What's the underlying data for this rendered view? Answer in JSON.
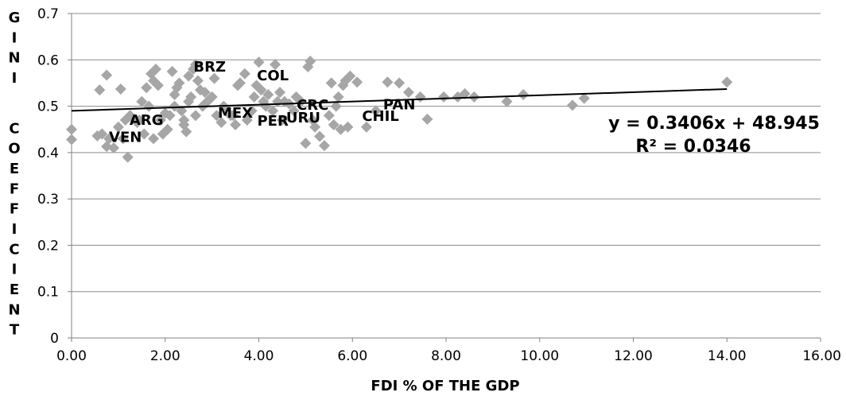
{
  "chart_data": {
    "type": "scatter",
    "title": "",
    "xlabel": "FDI % OF THE GDP",
    "ylabel": "GINI COEFFICIENT",
    "xlim": [
      0,
      16
    ],
    "ylim": [
      0,
      0.7
    ],
    "x_ticks": [
      "0.00",
      "2.00",
      "4.00",
      "6.00",
      "8.00",
      "10.00",
      "12.00",
      "14.00",
      "16.00"
    ],
    "y_ticks": [
      "0",
      "0.1",
      "0.2",
      "0.3",
      "0.4",
      "0.5",
      "0.6",
      "0.7"
    ],
    "grid": "horizontal",
    "marker_color": "#a6a6a6",
    "trendline_color": "#000000",
    "trendline": {
      "equation": "y = 0.3406x + 48.945",
      "r_squared": "R² = 0.0346",
      "x": [
        0,
        14
      ],
      "y": [
        0.49,
        0.537
      ]
    },
    "country_labels": [
      {
        "text": "BRZ",
        "x": 2.95,
        "y": 0.575
      },
      {
        "text": "COL",
        "x": 4.3,
        "y": 0.556
      },
      {
        "text": "CRC",
        "x": 5.15,
        "y": 0.492
      },
      {
        "text": "PAN",
        "x": 7.0,
        "y": 0.493
      },
      {
        "text": "MEX",
        "x": 3.5,
        "y": 0.475
      },
      {
        "text": "PER",
        "x": 4.3,
        "y": 0.458
      },
      {
        "text": "URU",
        "x": 4.95,
        "y": 0.465
      },
      {
        "text": "CHIL",
        "x": 6.6,
        "y": 0.468
      },
      {
        "text": "ARG",
        "x": 1.6,
        "y": 0.46
      },
      {
        "text": "VEN",
        "x": 1.15,
        "y": 0.423
      }
    ],
    "points": [
      [
        0.0,
        0.45
      ],
      [
        0.0,
        0.428
      ],
      [
        0.55,
        0.436
      ],
      [
        0.6,
        0.535
      ],
      [
        0.65,
        0.44
      ],
      [
        0.75,
        0.567
      ],
      [
        0.75,
        0.413
      ],
      [
        0.8,
        0.43
      ],
      [
        0.9,
        0.41
      ],
      [
        1.0,
        0.455
      ],
      [
        1.05,
        0.537
      ],
      [
        1.1,
        0.43
      ],
      [
        1.15,
        0.47
      ],
      [
        1.2,
        0.39
      ],
      [
        1.25,
        0.48
      ],
      [
        1.35,
        0.47
      ],
      [
        1.4,
        0.465
      ],
      [
        1.45,
        0.47
      ],
      [
        1.5,
        0.51
      ],
      [
        1.55,
        0.44
      ],
      [
        1.6,
        0.54
      ],
      [
        1.65,
        0.5
      ],
      [
        1.7,
        0.57
      ],
      [
        1.75,
        0.555
      ],
      [
        1.75,
        0.43
      ],
      [
        1.8,
        0.58
      ],
      [
        1.85,
        0.545
      ],
      [
        1.9,
        0.47
      ],
      [
        1.95,
        0.44
      ],
      [
        2.0,
        0.485
      ],
      [
        2.05,
        0.45
      ],
      [
        2.1,
        0.48
      ],
      [
        2.15,
        0.575
      ],
      [
        2.2,
        0.525
      ],
      [
        2.2,
        0.5
      ],
      [
        2.25,
        0.54
      ],
      [
        2.3,
        0.55
      ],
      [
        2.35,
        0.49
      ],
      [
        2.4,
        0.47
      ],
      [
        2.4,
        0.46
      ],
      [
        2.45,
        0.445
      ],
      [
        2.5,
        0.565
      ],
      [
        2.5,
        0.51
      ],
      [
        2.55,
        0.52
      ],
      [
        2.6,
        0.58
      ],
      [
        2.65,
        0.59
      ],
      [
        2.65,
        0.48
      ],
      [
        2.7,
        0.555
      ],
      [
        2.75,
        0.535
      ],
      [
        2.8,
        0.5
      ],
      [
        2.85,
        0.53
      ],
      [
        2.9,
        0.51
      ],
      [
        3.0,
        0.52
      ],
      [
        3.05,
        0.56
      ],
      [
        3.1,
        0.48
      ],
      [
        3.2,
        0.465
      ],
      [
        3.25,
        0.5
      ],
      [
        3.3,
        0.495
      ],
      [
        3.4,
        0.48
      ],
      [
        3.45,
        0.48
      ],
      [
        3.5,
        0.46
      ],
      [
        3.55,
        0.545
      ],
      [
        3.6,
        0.55
      ],
      [
        3.7,
        0.57
      ],
      [
        3.75,
        0.47
      ],
      [
        3.85,
        0.49
      ],
      [
        3.9,
        0.52
      ],
      [
        3.95,
        0.545
      ],
      [
        4.0,
        0.595
      ],
      [
        4.05,
        0.535
      ],
      [
        4.1,
        0.51
      ],
      [
        4.15,
        0.5
      ],
      [
        4.2,
        0.525
      ],
      [
        4.3,
        0.49
      ],
      [
        4.35,
        0.59
      ],
      [
        4.4,
        0.51
      ],
      [
        4.45,
        0.53
      ],
      [
        4.5,
        0.47
      ],
      [
        4.55,
        0.51
      ],
      [
        4.65,
        0.505
      ],
      [
        4.75,
        0.49
      ],
      [
        4.8,
        0.52
      ],
      [
        4.9,
        0.51
      ],
      [
        5.0,
        0.42
      ],
      [
        5.05,
        0.585
      ],
      [
        5.1,
        0.597
      ],
      [
        5.15,
        0.47
      ],
      [
        5.2,
        0.455
      ],
      [
        5.3,
        0.435
      ],
      [
        5.4,
        0.415
      ],
      [
        5.5,
        0.48
      ],
      [
        5.55,
        0.55
      ],
      [
        5.6,
        0.46
      ],
      [
        5.65,
        0.5
      ],
      [
        5.7,
        0.52
      ],
      [
        5.75,
        0.45
      ],
      [
        5.8,
        0.545
      ],
      [
        5.85,
        0.555
      ],
      [
        5.9,
        0.455
      ],
      [
        5.95,
        0.565
      ],
      [
        6.1,
        0.552
      ],
      [
        6.3,
        0.455
      ],
      [
        6.5,
        0.49
      ],
      [
        6.75,
        0.552
      ],
      [
        7.0,
        0.55
      ],
      [
        7.2,
        0.53
      ],
      [
        7.45,
        0.52
      ],
      [
        7.6,
        0.472
      ],
      [
        7.95,
        0.52
      ],
      [
        8.25,
        0.52
      ],
      [
        8.4,
        0.527
      ],
      [
        8.6,
        0.52
      ],
      [
        9.3,
        0.51
      ],
      [
        9.65,
        0.525
      ],
      [
        10.7,
        0.502
      ],
      [
        10.95,
        0.517
      ],
      [
        14.0,
        0.552
      ]
    ]
  }
}
